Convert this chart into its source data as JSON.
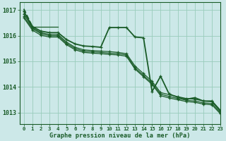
{
  "title": "Graphe pression niveau de la mer (hPa)",
  "bg_color": "#cce8e8",
  "grid_color": "#99ccbb",
  "line_color": "#1a5c28",
  "xlim": [
    -0.5,
    23
  ],
  "ylim": [
    1012.55,
    1017.3
  ],
  "yticks": [
    1013,
    1014,
    1015,
    1016,
    1017
  ],
  "xticks": [
    0,
    1,
    2,
    3,
    4,
    5,
    6,
    7,
    8,
    9,
    10,
    11,
    12,
    13,
    14,
    15,
    16,
    17,
    18,
    19,
    20,
    21,
    22,
    23
  ],
  "lines": [
    {
      "x": [
        0,
        1,
        2,
        3,
        4,
        5,
        6,
        7,
        8,
        9,
        10,
        11,
        12,
        13,
        14,
        15,
        16,
        17,
        18,
        19,
        20,
        21,
        22,
        23
      ],
      "y": [
        1016.85,
        1016.32,
        1016.12,
        1016.05,
        1016.05,
        1015.75,
        1015.55,
        1015.45,
        1015.42,
        1015.4,
        1015.38,
        1015.35,
        1015.3,
        1014.82,
        1014.52,
        1014.22,
        1013.78,
        1013.7,
        1013.62,
        1013.55,
        1013.52,
        1013.45,
        1013.42,
        1013.05
      ],
      "lw": 0.9,
      "marker": true
    },
    {
      "x": [
        0,
        1,
        2,
        3,
        4,
        5,
        6,
        7,
        8,
        9,
        10,
        11,
        12,
        13,
        14,
        15,
        16,
        17,
        18,
        19,
        20,
        21,
        22,
        23
      ],
      "y": [
        1016.75,
        1016.28,
        1016.08,
        1016.0,
        1016.0,
        1015.7,
        1015.5,
        1015.4,
        1015.37,
        1015.35,
        1015.32,
        1015.3,
        1015.25,
        1014.75,
        1014.45,
        1014.15,
        1013.72,
        1013.63,
        1013.55,
        1013.48,
        1013.45,
        1013.38,
        1013.35,
        1013.0
      ],
      "lw": 0.9,
      "marker": true
    },
    {
      "x": [
        0,
        1,
        2,
        3,
        4,
        5,
        6,
        7,
        8,
        9,
        10,
        11,
        12,
        13,
        14,
        15,
        16,
        17,
        18,
        19,
        20,
        21,
        22,
        23
      ],
      "y": [
        1016.7,
        1016.22,
        1016.02,
        1015.95,
        1015.95,
        1015.65,
        1015.45,
        1015.35,
        1015.32,
        1015.3,
        1015.27,
        1015.25,
        1015.2,
        1014.7,
        1014.4,
        1014.1,
        1013.66,
        1013.57,
        1013.5,
        1013.43,
        1013.4,
        1013.33,
        1013.3,
        1012.95
      ],
      "lw": 0.9,
      "marker": true
    },
    {
      "x": [
        1,
        2,
        3,
        4
      ],
      "y": [
        1016.35,
        1016.35,
        1016.35,
        1016.35
      ],
      "lw": 0.9,
      "marker": false
    },
    {
      "x": [
        0,
        1,
        2,
        3,
        4,
        5,
        6,
        7,
        8,
        9,
        10,
        11,
        12,
        13,
        14,
        15,
        16,
        17,
        18,
        19,
        20,
        21,
        22,
        23
      ],
      "y": [
        1016.95,
        1016.36,
        1016.18,
        1016.12,
        1016.12,
        1015.85,
        1015.68,
        1015.6,
        1015.58,
        1015.55,
        1016.32,
        1016.32,
        1016.32,
        1015.95,
        1015.92,
        1013.82,
        1014.42,
        1013.72,
        1013.6,
        1013.52,
        1013.58,
        1013.45,
        1013.45,
        1013.08
      ],
      "lw": 1.3,
      "marker": true
    },
    {
      "x": [
        0,
        1
      ],
      "y": [
        1017.05,
        1016.36
      ],
      "lw": 1.3,
      "marker": false,
      "dashed": true
    }
  ]
}
